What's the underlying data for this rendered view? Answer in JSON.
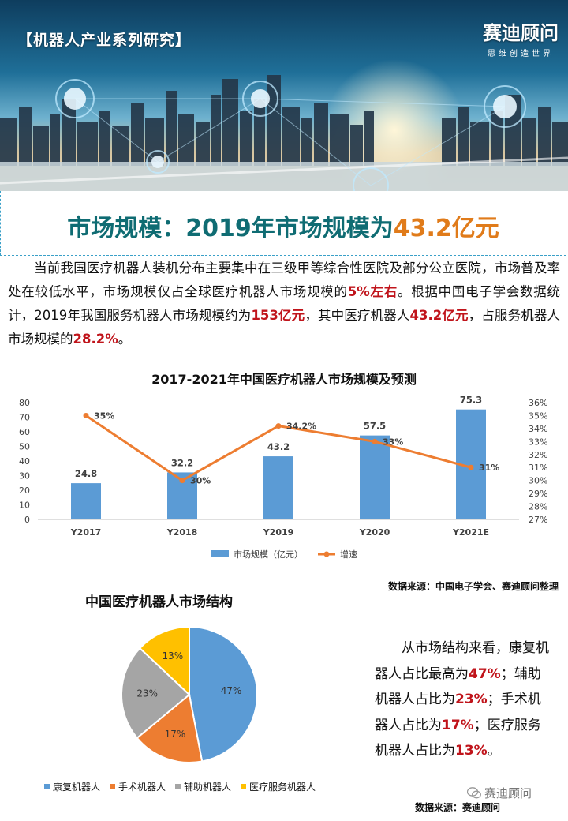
{
  "header": {
    "series_tag": "【机器人产业系列研究】",
    "brand_name": "赛迪顾问",
    "brand_slogan": "思维创造世界"
  },
  "headline": {
    "lead": "市场规模：2019年市场规模为",
    "highlight": "43.2亿元"
  },
  "intro": {
    "p1": "当前我国医疗机器人装机分布主要集中在三级甲等综合性医院及部分公立医院，市场普及率处在较低水平，市场规模仅占全球医疗机器人市场规模的",
    "h1": "5%左右",
    "p2": "。根据中国电子学会数据统计，2019年我国服务机器人市场规模约为",
    "h2": "153亿元",
    "p3": "，其中医疗机器人",
    "h3": "43.2亿元",
    "p4": "，占服务机器人市场规模的",
    "h4": "28.2%",
    "p5": "。"
  },
  "chart_data": [
    {
      "type": "bar",
      "title": "2017-2021年中国医疗机器人市场规模及预测",
      "categories": [
        "Y2017",
        "Y2018",
        "Y2019",
        "Y2020",
        "Y2021E"
      ],
      "series": [
        {
          "name": "市场规模（亿元）",
          "type": "bar",
          "values": [
            24.8,
            32.2,
            43.2,
            57.5,
            75.3
          ],
          "labels": [
            "24.8",
            "32.2",
            "43.2",
            "57.5",
            "75.3"
          ],
          "color": "#5b9bd5"
        },
        {
          "name": "增速",
          "type": "line",
          "values": [
            35,
            30,
            34.2,
            33,
            31
          ],
          "labels": [
            "35%",
            "30%",
            "34.2%",
            "33%",
            "31%"
          ],
          "color": "#ed7d31"
        }
      ],
      "ylim": [
        0,
        80
      ],
      "y_ticks": [
        "0",
        "10",
        "20",
        "30",
        "40",
        "50",
        "60",
        "70",
        "80"
      ],
      "y2lim": [
        27,
        36
      ],
      "y2_ticks": [
        "27%",
        "28%",
        "29%",
        "30%",
        "31%",
        "32%",
        "33%",
        "34%",
        "35%",
        "36%"
      ],
      "legend": "bottom",
      "grid": false
    },
    {
      "type": "pie",
      "title": "中国医疗机器人市场结构",
      "categories": [
        "康复机器人",
        "手术机器人",
        "辅助机器人",
        "医疗服务机器人"
      ],
      "values": [
        47,
        17,
        23,
        13
      ],
      "labels": [
        "47%",
        "17%",
        "23%",
        "13%"
      ],
      "colors": [
        "#5b9bd5",
        "#ed7d31",
        "#a5a5a5",
        "#ffc000"
      ],
      "legend": "bottom"
    }
  ],
  "bar_source": "数据来源：中国电子学会、赛迪顾问整理",
  "structure": {
    "t1": "从市场结构来看，康复机器人占比最高为",
    "h1": "47%",
    "t2": "；辅助机器人占比为",
    "h2": "23%",
    "t3": "；手术机器人占比为",
    "h3": "17%",
    "t4": "；医疗服务机器人占比为",
    "h4": "13%",
    "t5": "。"
  },
  "wechat_account": "赛迪顾问",
  "pie_source": "数据来源：赛迪顾问"
}
